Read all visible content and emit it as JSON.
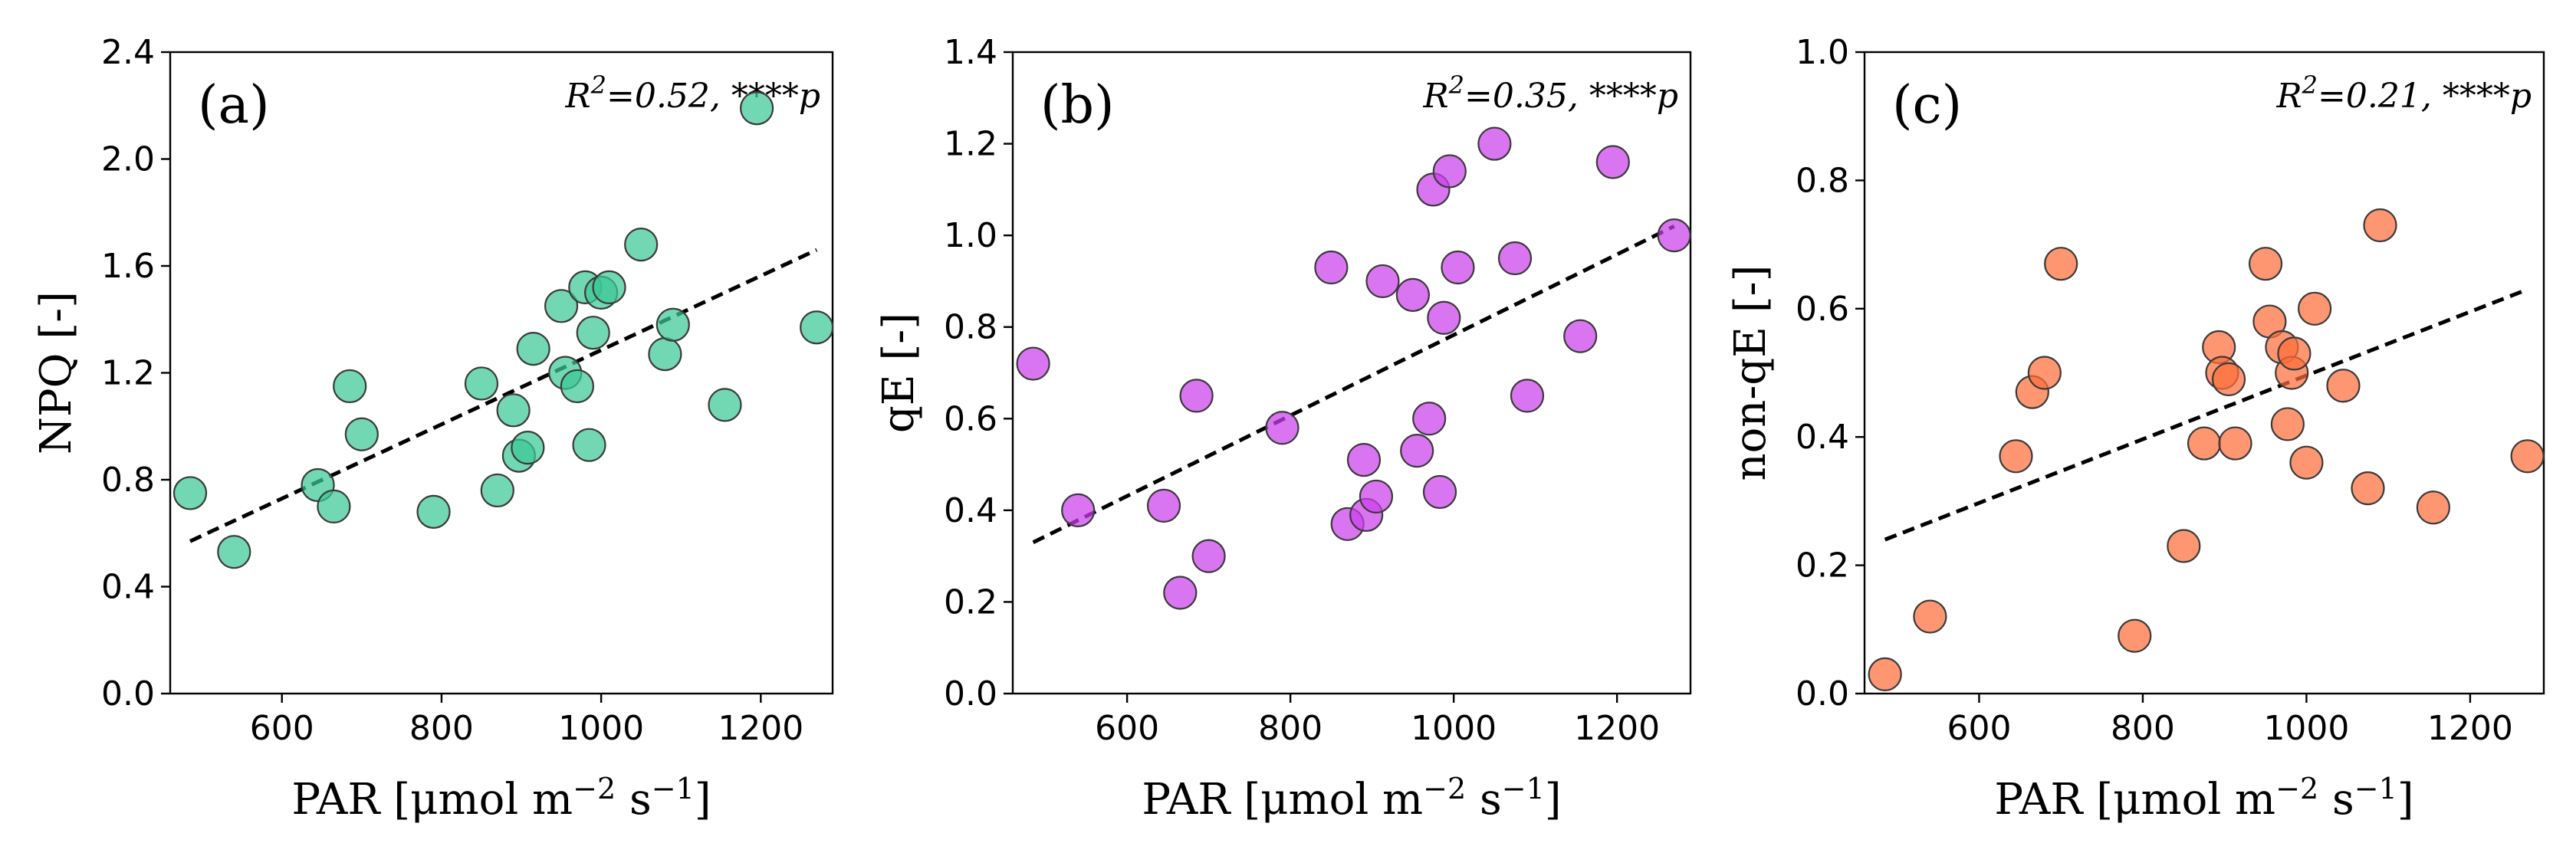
{
  "chart_data": [
    {
      "type": "scatter",
      "panel_label": "(a)",
      "xlabel": "PAR [μmol m⁻² s⁻¹]",
      "ylabel": "NPQ [-]",
      "annotation": "R²=0.52, ****p",
      "color": "#3cc796",
      "xlim": [
        460,
        1290
      ],
      "ylim": [
        0,
        2.4
      ],
      "xticks": [
        600,
        800,
        1000,
        1200
      ],
      "yticks": [
        "0.0",
        "0.4",
        "0.8",
        "1.2",
        "1.6",
        "2.0",
        "2.4"
      ],
      "x": [
        485,
        540,
        645,
        665,
        685,
        700,
        790,
        850,
        870,
        890,
        897,
        908,
        915,
        950,
        955,
        970,
        980,
        985,
        990,
        1000,
        1010,
        1050,
        1080,
        1090,
        1155,
        1195,
        1270
      ],
      "y": [
        0.75,
        0.53,
        0.78,
        0.7,
        1.15,
        0.97,
        0.68,
        1.16,
        0.76,
        1.06,
        0.89,
        0.92,
        1.29,
        1.45,
        1.2,
        1.15,
        1.52,
        0.93,
        1.35,
        1.5,
        1.52,
        1.68,
        1.27,
        1.38,
        1.08,
        2.19,
        1.37
      ],
      "fit": {
        "x": [
          485,
          1270
        ],
        "y": [
          0.57,
          1.66
        ]
      }
    },
    {
      "type": "scatter",
      "panel_label": "(b)",
      "xlabel": "PAR [μmol m⁻² s⁻¹]",
      "ylabel": "qE [-]",
      "annotation": "R²=0.35, ****p",
      "color": "#cc40ec",
      "xlim": [
        460,
        1290
      ],
      "ylim": [
        0,
        1.4
      ],
      "xticks": [
        600,
        800,
        1000,
        1200
      ],
      "yticks": [
        "0.0",
        "0.2",
        "0.4",
        "0.6",
        "0.8",
        "1.0",
        "1.2",
        "1.4"
      ],
      "x": [
        485,
        540,
        645,
        665,
        685,
        700,
        790,
        850,
        870,
        890,
        893,
        905,
        913,
        950,
        955,
        970,
        975,
        983,
        988,
        995,
        1005,
        1050,
        1075,
        1090,
        1155,
        1195,
        1270
      ],
      "y": [
        0.72,
        0.4,
        0.41,
        0.22,
        0.65,
        0.3,
        0.58,
        0.93,
        0.37,
        0.51,
        0.39,
        0.43,
        0.9,
        0.87,
        0.53,
        0.6,
        1.1,
        0.44,
        0.82,
        1.14,
        0.93,
        1.2,
        0.95,
        0.65,
        0.78,
        1.16,
        1.0
      ],
      "fit": {
        "x": [
          485,
          1270
        ],
        "y": [
          0.33,
          1.02
        ]
      }
    },
    {
      "type": "scatter",
      "panel_label": "(c)",
      "xlabel": "PAR [μmol m⁻² s⁻¹]",
      "ylabel": "non-qE [-]",
      "annotation": "R²=0.21, ****p",
      "color": "#fe6d3a",
      "xlim": [
        460,
        1290
      ],
      "ylim": [
        0,
        1.0
      ],
      "xticks": [
        600,
        800,
        1000,
        1200
      ],
      "yticks": [
        "0.0",
        "0.2",
        "0.4",
        "0.6",
        "0.8",
        "1.0"
      ],
      "x": [
        485,
        540,
        645,
        665,
        680,
        700,
        790,
        850,
        875,
        893,
        897,
        905,
        913,
        950,
        955,
        970,
        977,
        982,
        985,
        1000,
        1010,
        1045,
        1075,
        1090,
        1155,
        1270
      ],
      "y": [
        0.03,
        0.12,
        0.37,
        0.47,
        0.5,
        0.67,
        0.09,
        0.23,
        0.39,
        0.54,
        0.5,
        0.49,
        0.39,
        0.67,
        0.58,
        0.54,
        0.42,
        0.5,
        0.53,
        0.36,
        0.6,
        0.48,
        0.32,
        0.73,
        0.29,
        0.37
      ],
      "fit": {
        "x": [
          485,
          1270
        ],
        "y": [
          0.24,
          0.63
        ]
      }
    }
  ]
}
